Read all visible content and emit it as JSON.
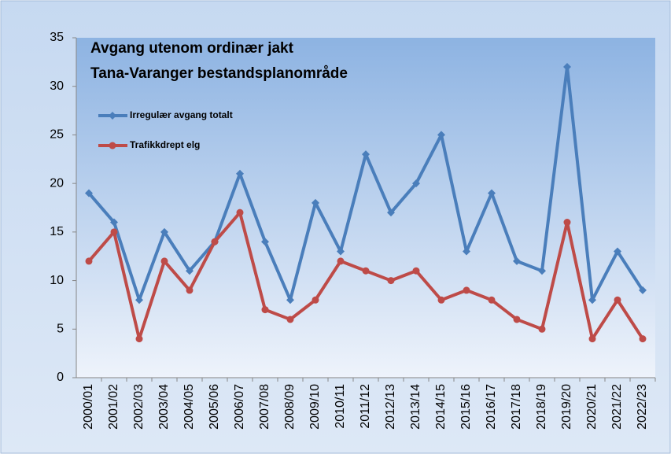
{
  "chart_data": {
    "type": "line",
    "title": "Avgang utenom ordinær jakt",
    "subtitle": "Tana-Varanger bestandsplanområde",
    "categories": [
      "2000/01",
      "2001/02",
      "2002/03",
      "2003/04",
      "2004/05",
      "2005/06",
      "2006/07",
      "2007/08",
      "2008/09",
      "2009/10",
      "2010/11",
      "2011/12",
      "2012/13",
      "2013/14",
      "2014/15",
      "2015/16",
      "2016/17",
      "2017/18",
      "2018/19",
      "2019/20",
      "2020/21",
      "2021/22",
      "2022/23"
    ],
    "series": [
      {
        "name": "Irregulær avgang totalt",
        "color": "#4a7ebb",
        "marker": "diamond",
        "values": [
          19,
          16,
          8,
          15,
          11,
          14,
          21,
          14,
          8,
          18,
          13,
          23,
          17,
          20,
          25,
          13,
          19,
          12,
          11,
          32,
          8,
          13,
          9
        ]
      },
      {
        "name": "Trafikkdrept elg",
        "color": "#be4b48",
        "marker": "circle",
        "values": [
          12,
          15,
          4,
          12,
          9,
          14,
          17,
          7,
          6,
          8,
          12,
          11,
          10,
          11,
          8,
          9,
          8,
          6,
          5,
          16,
          4,
          8,
          4
        ]
      }
    ],
    "ylim": [
      0,
      35
    ],
    "yticks": [
      0,
      5,
      10,
      15,
      20,
      25,
      30,
      35
    ],
    "legend": "upper left"
  }
}
